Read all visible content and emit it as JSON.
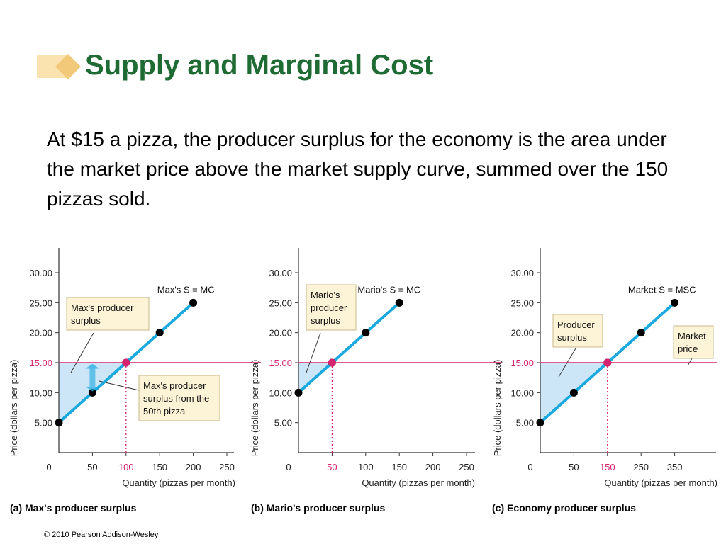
{
  "slide": {
    "title": "Supply and Marginal Cost",
    "body": "At $15 a pizza, the producer surplus for the economy is the area under the market price above the market supply curve, summed over the 150 pizzas sold.",
    "copyright": "© 2010 Pearson Addison-Wesley"
  },
  "colors": {
    "title": "#1e6b34",
    "supply_line": "#1aa8df",
    "price_line": "#d6246e",
    "surplus_fill": "#cce6f7",
    "label_box_fill": "#fdf3d6",
    "label_box_border": "#c8b98a",
    "bullet": "#f2c879"
  },
  "chart_data": [
    {
      "type": "line",
      "caption": "(a) Max's producer surplus",
      "ylabel": "Price (dollars per pizza)",
      "xlabel": "Quantity (pizzas per month)",
      "xlim": [
        0,
        250
      ],
      "ylim": [
        0,
        30
      ],
      "x_ticks": [
        0,
        50,
        100,
        150,
        200,
        250
      ],
      "x_tick_labels": [
        "0",
        "50",
        "100",
        "150",
        "200",
        "250"
      ],
      "y_ticks": [
        5,
        10,
        15,
        20,
        25,
        30
      ],
      "y_tick_labels": [
        "5.00",
        "10.00",
        "15.00",
        "20.00",
        "25.00",
        "30.00"
      ],
      "highlight_x": 100,
      "highlight_y": 15,
      "series": [
        {
          "name": "Max's S = MC",
          "x": [
            0,
            50,
            100,
            150,
            200
          ],
          "y": [
            5,
            10,
            15,
            20,
            25
          ]
        }
      ],
      "market_price": 15,
      "equilibrium": {
        "x": 100,
        "y": 15
      },
      "annotations": [
        "Max's producer surplus",
        "Max's producer surplus from the 50th pizza"
      ]
    },
    {
      "type": "line",
      "caption": "(b) Mario's producer surplus",
      "ylabel": "Price (dollars per pizza)",
      "xlabel": "Quantity (pizzas per month)",
      "xlim": [
        0,
        250
      ],
      "ylim": [
        0,
        30
      ],
      "x_ticks": [
        0,
        50,
        100,
        150,
        200,
        250
      ],
      "x_tick_labels": [
        "0",
        "50",
        "100",
        "150",
        "200",
        "250"
      ],
      "y_ticks": [
        5,
        10,
        15,
        20,
        25,
        30
      ],
      "y_tick_labels": [
        "5.00",
        "10.00",
        "15.00",
        "20.00",
        "25.00",
        "30.00"
      ],
      "highlight_x": 50,
      "highlight_y": 15,
      "series": [
        {
          "name": "Mario's S = MC",
          "x": [
            0,
            50,
            100,
            150
          ],
          "y": [
            10,
            15,
            20,
            25
          ]
        }
      ],
      "market_price": 15,
      "equilibrium": {
        "x": 50,
        "y": 15
      },
      "annotations": [
        "Mario's producer surplus"
      ]
    },
    {
      "type": "line",
      "caption": "(c) Economy producer surplus",
      "ylabel": "Price (dollars per pizza)",
      "xlabel": "Quantity (pizzas per month)",
      "xlim": [
        0,
        400
      ],
      "ylim": [
        0,
        30
      ],
      "x_ticks": [
        0,
        50,
        150,
        250,
        350
      ],
      "x_tick_labels": [
        "0",
        "50",
        "150",
        "250",
        "350"
      ],
      "y_ticks": [
        5,
        10,
        15,
        20,
        25,
        30
      ],
      "y_tick_labels": [
        "5.00",
        "10.00",
        "15.00",
        "20.00",
        "25.00",
        "30.00"
      ],
      "highlight_x": 150,
      "highlight_y": 15,
      "series": [
        {
          "name": "Market S = MSC",
          "x": [
            0,
            50,
            150,
            250,
            350
          ],
          "y": [
            5,
            10,
            15,
            20,
            25
          ]
        }
      ],
      "market_price": 15,
      "equilibrium": {
        "x": 150,
        "y": 15
      },
      "annotations": [
        "Producer surplus",
        "Market price"
      ]
    }
  ]
}
